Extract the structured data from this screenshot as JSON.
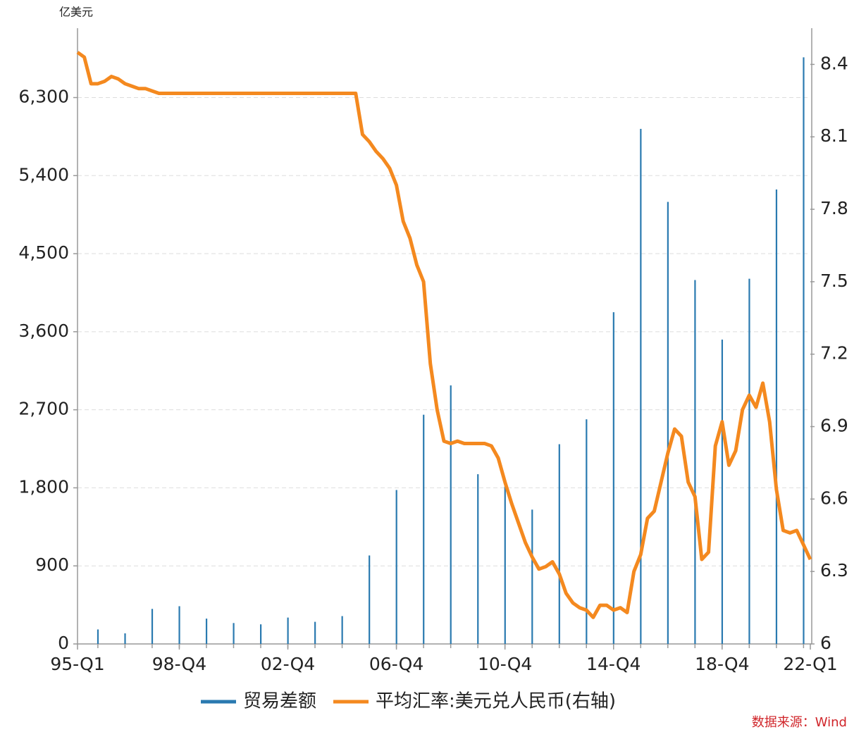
{
  "chart_data": {
    "type": "bar+line",
    "y_unit": "亿美元",
    "source": "数据来源：Wind",
    "categories": [
      "95-Q1",
      null,
      null,
      null,
      null,
      null,
      null,
      null,
      null,
      null,
      null,
      null,
      null,
      null,
      null,
      "98-Q4",
      null,
      null,
      null,
      null,
      null,
      null,
      null,
      null,
      null,
      null,
      null,
      null,
      null,
      null,
      null,
      "02-Q4",
      null,
      null,
      null,
      null,
      null,
      null,
      null,
      null,
      null,
      null,
      null,
      null,
      null,
      null,
      null,
      "06-Q4",
      null,
      null,
      null,
      null,
      null,
      null,
      null,
      null,
      null,
      null,
      null,
      null,
      null,
      null,
      null,
      "10-Q4",
      null,
      null,
      null,
      null,
      null,
      null,
      null,
      null,
      null,
      null,
      null,
      null,
      null,
      null,
      null,
      "14-Q4",
      null,
      null,
      null,
      null,
      null,
      null,
      null,
      null,
      null,
      null,
      null,
      null,
      null,
      null,
      null,
      "18-Q4",
      null,
      null,
      null,
      null,
      null,
      null,
      null,
      null,
      null,
      null,
      null,
      null,
      "22-Q1"
    ],
    "series": [
      {
        "name": "贸易差额",
        "type": "bar",
        "color": "#2a7ab0",
        "values": [
          null,
          null,
          null,
          167,
          null,
          null,
          null,
          122,
          null,
          null,
          null,
          404,
          null,
          null,
          null,
          435,
          null,
          null,
          null,
          292,
          null,
          null,
          null,
          241,
          null,
          null,
          null,
          226,
          null,
          null,
          null,
          304,
          null,
          null,
          null,
          255,
          null,
          null,
          null,
          321,
          null,
          null,
          null,
          1020,
          null,
          null,
          null,
          1775,
          null,
          null,
          null,
          2643,
          null,
          null,
          null,
          2981,
          null,
          null,
          null,
          1957,
          null,
          null,
          null,
          1815,
          null,
          null,
          null,
          1549,
          null,
          null,
          null,
          2303,
          null,
          null,
          null,
          2590,
          null,
          null,
          null,
          3825,
          null,
          null,
          null,
          5939,
          null,
          null,
          null,
          5097,
          null,
          null,
          null,
          4196,
          null,
          null,
          null,
          3509,
          null,
          null,
          null,
          4211,
          null,
          null,
          null,
          5240,
          null,
          null,
          null,
          6764,
          null
        ]
      },
      {
        "name": "平均汇率:美元兑人民币(右轴)",
        "type": "line",
        "axis": "y2",
        "color": "#f4891f",
        "values": [
          8.45,
          8.43,
          8.32,
          8.32,
          8.33,
          8.35,
          8.34,
          8.32,
          8.31,
          8.3,
          8.3,
          8.29,
          8.28,
          8.28,
          8.28,
          8.28,
          8.28,
          8.28,
          8.28,
          8.28,
          8.28,
          8.28,
          8.28,
          8.28,
          8.28,
          8.28,
          8.28,
          8.28,
          8.28,
          8.28,
          8.28,
          8.28,
          8.28,
          8.28,
          8.28,
          8.28,
          8.28,
          8.28,
          8.28,
          8.28,
          8.28,
          8.28,
          8.11,
          8.08,
          8.04,
          8.01,
          7.97,
          7.9,
          7.75,
          7.68,
          7.57,
          7.5,
          7.16,
          6.97,
          6.84,
          6.83,
          6.84,
          6.83,
          6.83,
          6.83,
          6.83,
          6.82,
          6.77,
          6.67,
          6.58,
          6.5,
          6.42,
          6.36,
          6.31,
          6.32,
          6.34,
          6.29,
          6.21,
          6.17,
          6.15,
          6.14,
          6.11,
          6.16,
          6.16,
          6.14,
          6.15,
          6.13,
          6.3,
          6.37,
          6.52,
          6.55,
          6.67,
          6.79,
          6.89,
          6.86,
          6.67,
          6.61,
          6.35,
          6.38,
          6.82,
          6.92,
          6.74,
          6.8,
          6.97,
          7.03,
          6.98,
          7.08,
          6.92,
          6.64,
          6.47,
          6.46,
          6.47,
          6.41,
          6.35
        ]
      }
    ],
    "ylim": [
      0,
      7100
    ],
    "yticks": [
      0,
      {
        "value": 900,
        "label": "900"
      },
      {
        "value": 1800,
        "label": "1,800"
      },
      {
        "value": 2700,
        "label": "2,700"
      },
      {
        "value": 3600,
        "label": "3,600"
      },
      {
        "value": 4500,
        "label": "4,500"
      },
      {
        "value": 5400,
        "label": "5,400"
      },
      {
        "value": 6300,
        "label": "6,300"
      }
    ],
    "y2lim": [
      6,
      8.55
    ],
    "y2ticks": [
      6,
      6.3,
      6.6,
      6.9,
      7.2,
      7.5,
      7.8,
      8.1,
      8.4
    ],
    "grid": true,
    "legend": "bottom"
  }
}
